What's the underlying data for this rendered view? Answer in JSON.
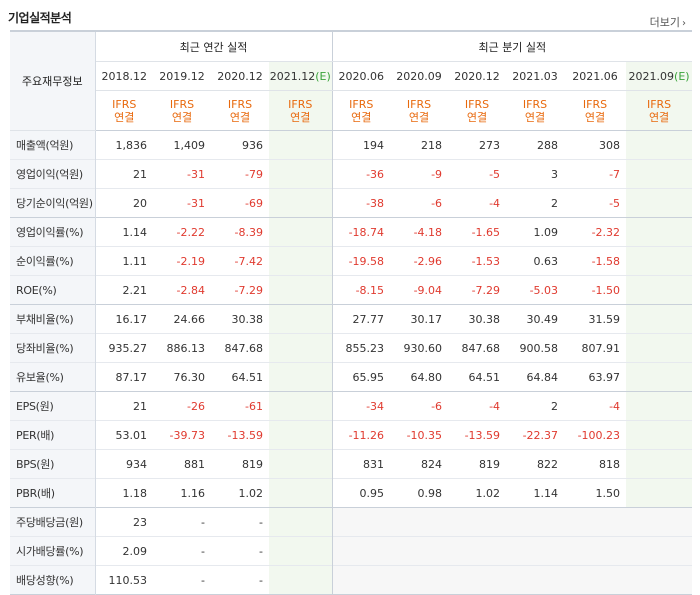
{
  "header": {
    "title": "기업실적분석",
    "more_label": "더보기",
    "more_arrow": "›"
  },
  "table": {
    "row_label_header": "주요재무정보",
    "annual_group": "최근 연간 실적",
    "quarter_group": "최근 분기 실적",
    "annual_cols": [
      "2018.12",
      "2019.12",
      "2020.12",
      "2021.12"
    ],
    "quarter_cols": [
      "2020.06",
      "2020.09",
      "2020.12",
      "2021.03",
      "2021.06",
      "2021.09"
    ],
    "estimate_mark": "(E)",
    "basis_line1": "IFRS",
    "basis_line2": "연결",
    "rows": [
      {
        "label": "매출액(억원)",
        "annual": [
          "1,836",
          "1,409",
          "936",
          ""
        ],
        "quarter": [
          "194",
          "218",
          "273",
          "288",
          "308",
          ""
        ]
      },
      {
        "label": "영업이익(억원)",
        "annual": [
          "21",
          "-31",
          "-79",
          ""
        ],
        "quarter": [
          "-36",
          "-9",
          "-5",
          "3",
          "-7",
          ""
        ]
      },
      {
        "label": "당기순이익(억원)",
        "annual": [
          "20",
          "-31",
          "-69",
          ""
        ],
        "quarter": [
          "-38",
          "-6",
          "-4",
          "2",
          "-5",
          ""
        ]
      },
      {
        "label": "영업이익률(%)",
        "annual": [
          "1.14",
          "-2.22",
          "-8.39",
          ""
        ],
        "quarter": [
          "-18.74",
          "-4.18",
          "-1.65",
          "1.09",
          "-2.32",
          ""
        ]
      },
      {
        "label": "순이익률(%)",
        "annual": [
          "1.11",
          "-2.19",
          "-7.42",
          ""
        ],
        "quarter": [
          "-19.58",
          "-2.96",
          "-1.53",
          "0.63",
          "-1.58",
          ""
        ]
      },
      {
        "label": "ROE(%)",
        "annual": [
          "2.21",
          "-2.84",
          "-7.29",
          ""
        ],
        "quarter": [
          "-8.15",
          "-9.04",
          "-7.29",
          "-5.03",
          "-1.50",
          ""
        ]
      },
      {
        "label": "부채비율(%)",
        "annual": [
          "16.17",
          "24.66",
          "30.38",
          ""
        ],
        "quarter": [
          "27.77",
          "30.17",
          "30.38",
          "30.49",
          "31.59",
          ""
        ]
      },
      {
        "label": "당좌비율(%)",
        "annual": [
          "935.27",
          "886.13",
          "847.68",
          ""
        ],
        "quarter": [
          "855.23",
          "930.60",
          "847.68",
          "900.58",
          "807.91",
          ""
        ]
      },
      {
        "label": "유보율(%)",
        "annual": [
          "87.17",
          "76.30",
          "64.51",
          ""
        ],
        "quarter": [
          "65.95",
          "64.80",
          "64.51",
          "64.84",
          "63.97",
          ""
        ]
      },
      {
        "label": "EPS(원)",
        "annual": [
          "21",
          "-26",
          "-61",
          ""
        ],
        "quarter": [
          "-34",
          "-6",
          "-4",
          "2",
          "-4",
          ""
        ]
      },
      {
        "label": "PER(배)",
        "annual": [
          "53.01",
          "-39.73",
          "-13.59",
          ""
        ],
        "quarter": [
          "-11.26",
          "-10.35",
          "-13.59",
          "-22.37",
          "-100.23",
          ""
        ]
      },
      {
        "label": "BPS(원)",
        "annual": [
          "934",
          "881",
          "819",
          ""
        ],
        "quarter": [
          "831",
          "824",
          "819",
          "822",
          "818",
          ""
        ]
      },
      {
        "label": "PBR(배)",
        "annual": [
          "1.18",
          "1.16",
          "1.02",
          ""
        ],
        "quarter": [
          "0.95",
          "0.98",
          "1.02",
          "1.14",
          "1.50",
          ""
        ]
      },
      {
        "label": "주당배당금(원)",
        "annual": [
          "23",
          "-",
          "-",
          ""
        ],
        "quarter": null
      },
      {
        "label": "시가배당률(%)",
        "annual": [
          "2.09",
          "-",
          "-",
          ""
        ],
        "quarter": null
      },
      {
        "label": "배당성향(%)",
        "annual": [
          "110.53",
          "-",
          "-",
          ""
        ],
        "quarter": null
      }
    ],
    "section_starts": [
      3,
      6,
      9,
      13
    ]
  },
  "colors": {
    "negative": "#e03a2f",
    "basis": "#e8690d",
    "estimate_bg": "#f2f8ef",
    "estimate_mark": "#3aa33a"
  }
}
